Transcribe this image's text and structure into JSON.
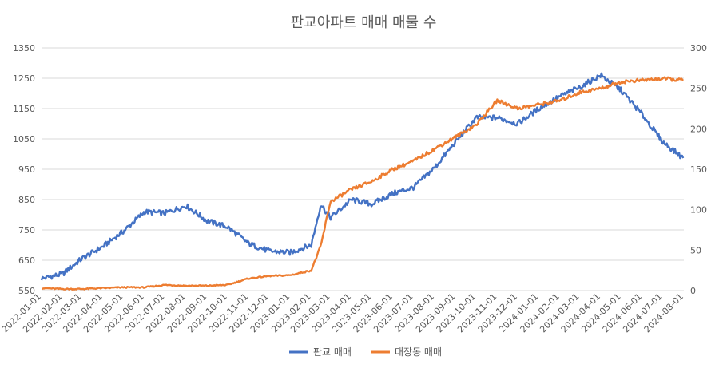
{
  "chart_data": {
    "type": "line",
    "title": "판교아파트 매매 매물 수",
    "xlabel": "",
    "ylabel": "",
    "grid": true,
    "legend_position": "bottom",
    "x_ticks": [
      "2022-01-01",
      "2022-02-01",
      "2022-03-01",
      "2022-04-01",
      "2022-05-01",
      "2022-06-01",
      "2022-07-01",
      "2022-08-01",
      "2022-09-01",
      "2022-10-01",
      "2022-11-01",
      "2022-12-01",
      "2023-01-01",
      "2023-02-01",
      "2023-03-01",
      "2023-04-01",
      "2023-05-01",
      "2023-06-01",
      "2023-07-01",
      "2023-08-01",
      "2023-09-01",
      "2023-10-01",
      "2023-11-01",
      "2023-12-01",
      "2024-01-01",
      "2024-02-01",
      "2024-03-01",
      "2024-04-01",
      "2024-05-01",
      "2024-06-01",
      "2024-07-01",
      "2024-08-01"
    ],
    "y_left": {
      "min": 550,
      "max": 1350,
      "ticks": [
        550,
        650,
        750,
        850,
        950,
        1050,
        1150,
        1250,
        1350
      ]
    },
    "y_right": {
      "min": 0,
      "max": 300,
      "ticks": [
        0,
        50,
        100,
        150,
        200,
        250,
        300
      ]
    },
    "series": [
      {
        "name": "판교 매매",
        "axis": "left",
        "color": "#4472c4",
        "x": [
          "2022-01-01",
          "2022-02-01",
          "2022-03-01",
          "2022-04-01",
          "2022-05-01",
          "2022-06-01",
          "2022-07-01",
          "2022-08-01",
          "2022-09-01",
          "2022-10-01",
          "2022-11-01",
          "2022-12-01",
          "2023-01-01",
          "2023-02-01",
          "2023-02-15",
          "2023-03-01",
          "2023-04-01",
          "2023-05-01",
          "2023-06-01",
          "2023-07-01",
          "2023-08-01",
          "2023-09-01",
          "2023-10-01",
          "2023-11-01",
          "2023-12-01",
          "2024-01-01",
          "2024-02-01",
          "2024-03-01",
          "2024-04-01",
          "2024-05-01",
          "2024-06-01",
          "2024-07-01",
          "2024-08-01"
        ],
        "values": [
          590,
          605,
          655,
          695,
          745,
          810,
          805,
          830,
          780,
          760,
          705,
          680,
          675,
          700,
          835,
          790,
          850,
          835,
          870,
          890,
          955,
          1040,
          1120,
          1120,
          1100,
          1150,
          1190,
          1220,
          1260,
          1210,
          1130,
          1040,
          985
        ]
      },
      {
        "name": "대장동 매매",
        "axis": "right",
        "color": "#ed7d31",
        "x": [
          "2022-01-01",
          "2022-02-01",
          "2022-03-01",
          "2022-04-01",
          "2022-05-01",
          "2022-06-01",
          "2022-07-01",
          "2022-08-01",
          "2022-09-01",
          "2022-10-01",
          "2022-11-01",
          "2022-12-01",
          "2023-01-01",
          "2023-02-01",
          "2023-02-15",
          "2023-03-01",
          "2023-04-01",
          "2023-05-01",
          "2023-06-01",
          "2023-07-01",
          "2023-08-01",
          "2023-09-01",
          "2023-10-01",
          "2023-11-01",
          "2023-12-01",
          "2024-01-01",
          "2024-02-01",
          "2024-03-01",
          "2024-04-01",
          "2024-05-01",
          "2024-06-01",
          "2024-07-01",
          "2024-08-01"
        ],
        "values": [
          3,
          2,
          2,
          3,
          4,
          4,
          7,
          6,
          6,
          7,
          15,
          18,
          19,
          25,
          55,
          110,
          125,
          135,
          150,
          160,
          175,
          190,
          205,
          235,
          225,
          230,
          235,
          245,
          250,
          258,
          260,
          262,
          260
        ]
      }
    ]
  }
}
